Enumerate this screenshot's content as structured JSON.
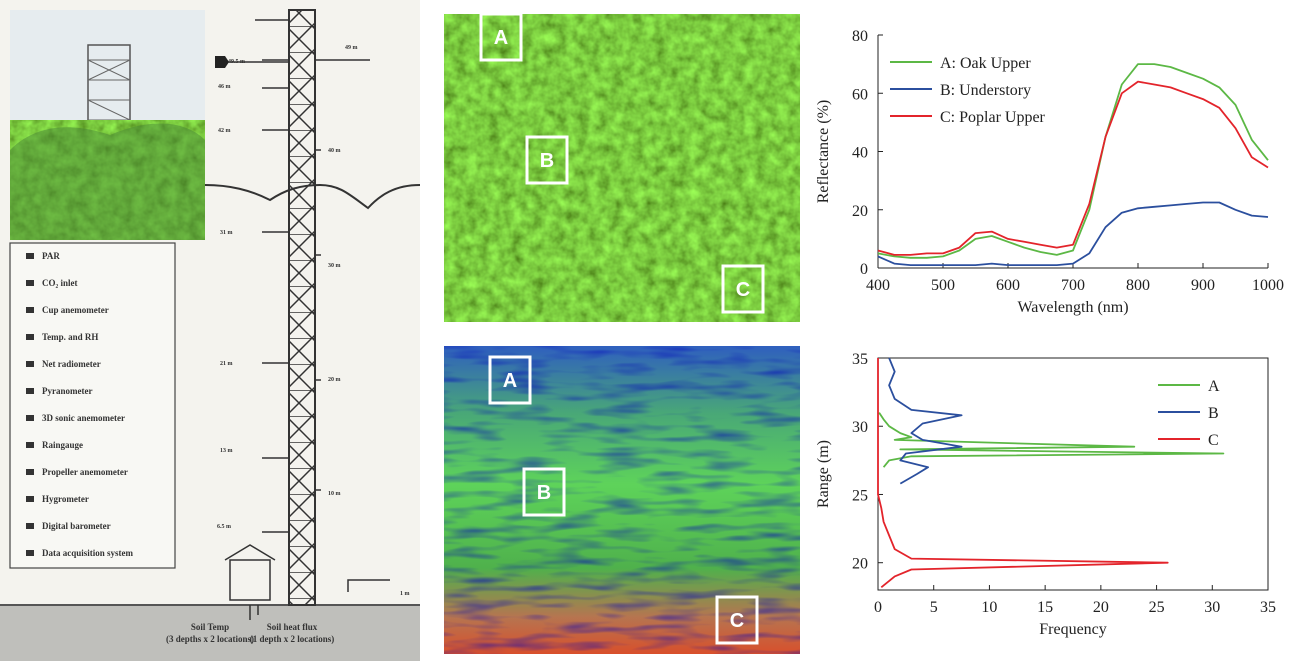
{
  "diagram": {
    "legend": [
      "PAR",
      "CO₂ inlet",
      "Cup anemometer",
      "Temp. and RH",
      "Net radiometer",
      "Pyranometer",
      "3D sonic anemometer",
      "Raingauge",
      "Propeller anemometer",
      "Hygrometer",
      "Digital barometer",
      "Data acquisition system"
    ],
    "heights": [
      "49.5 m",
      "49 m",
      "46 m",
      "42 m",
      "31 m",
      "21 m",
      "13 m",
      "6.5 m",
      "1 m"
    ],
    "scale": [
      "40 m",
      "30 m",
      "20 m",
      "10 m"
    ],
    "ground": [
      "Soil Temp",
      "(3 depths x 2 locations)",
      "Soil heat flux",
      "(1 depth x 2 locations)"
    ]
  },
  "images": [
    {
      "labels": [
        "A",
        "B",
        "C"
      ]
    },
    {
      "labels": [
        "A",
        "B",
        "C"
      ]
    }
  ],
  "chart_data": [
    {
      "type": "line",
      "x_label": "Wavelength (nm)",
      "y_label": "Reflectance (%)",
      "x": [
        400,
        425,
        450,
        475,
        500,
        525,
        550,
        575,
        600,
        625,
        650,
        675,
        700,
        725,
        750,
        775,
        800,
        825,
        850,
        875,
        900,
        925,
        950,
        975,
        1000
      ],
      "series": [
        {
          "name": "A: Oak Upper",
          "color": "#5cb845",
          "values": [
            5,
            4,
            3.5,
            3.5,
            4,
            6,
            10,
            11,
            9,
            7,
            5.5,
            4.5,
            6,
            20,
            45,
            63,
            70,
            70,
            69,
            67,
            65,
            62,
            56,
            44,
            37
          ]
        },
        {
          "name": "B: Understory",
          "color": "#2b4f9e",
          "values": [
            4,
            1.5,
            1,
            1,
            1,
            1,
            1,
            1.5,
            1,
            1,
            1,
            1,
            1.5,
            5,
            14,
            19,
            20.5,
            21,
            21.5,
            22,
            22.5,
            22.5,
            20,
            18,
            17.5
          ]
        },
        {
          "name": "C: Poplar Upper",
          "color": "#e3242b",
          "values": [
            6,
            4.5,
            4.5,
            5,
            5,
            7,
            12,
            12.5,
            10,
            9,
            8,
            7,
            8,
            22,
            45,
            60,
            64,
            63,
            62,
            60,
            58,
            55,
            48,
            38,
            34.5
          ]
        }
      ],
      "xlim": [
        400,
        1000
      ],
      "xticks": [
        400,
        500,
        600,
        700,
        800,
        900,
        1000
      ],
      "ylim": [
        0,
        80
      ],
      "yticks": [
        0,
        20,
        40,
        60,
        80
      ],
      "legend": "upper left",
      "box": false
    },
    {
      "type": "line",
      "x_label": "Frequency",
      "y_label": "Range (m)",
      "series": [
        {
          "name": "A",
          "color": "#5cb845",
          "x": [
            0.1,
            0.5,
            1,
            2,
            3,
            1.5,
            23,
            2,
            31,
            3,
            1,
            0.5
          ],
          "values": [
            31,
            30.5,
            30,
            29.5,
            29.2,
            29,
            28.5,
            28.3,
            28,
            27.8,
            27.5,
            27
          ]
        },
        {
          "name": "B",
          "color": "#2b4f9e",
          "x": [
            2,
            3.5,
            4.5,
            2,
            2.5,
            7.5,
            4,
            3,
            4,
            7.5,
            3,
            1.5,
            1,
            1.5,
            1
          ],
          "values": [
            25.8,
            26.5,
            27,
            27.5,
            28,
            28.5,
            29,
            29.5,
            30.2,
            30.8,
            31.2,
            32,
            33,
            34,
            35
          ]
        },
        {
          "name": "C",
          "color": "#e3242b",
          "x": [
            0.3,
            1.5,
            3,
            26,
            3,
            1.5,
            1,
            0.5,
            0.3,
            0,
            0,
            0,
            0
          ],
          "values": [
            18.2,
            19,
            19.5,
            20,
            20.3,
            21,
            22,
            23,
            24,
            25,
            27,
            30,
            35
          ]
        }
      ],
      "xlim": [
        0,
        35
      ],
      "xticks": [
        0,
        5,
        10,
        15,
        20,
        25,
        30,
        35
      ],
      "ylim": [
        18,
        35
      ],
      "yticks": [
        20,
        25,
        30,
        35
      ],
      "legend": "upper right",
      "box": true
    }
  ]
}
